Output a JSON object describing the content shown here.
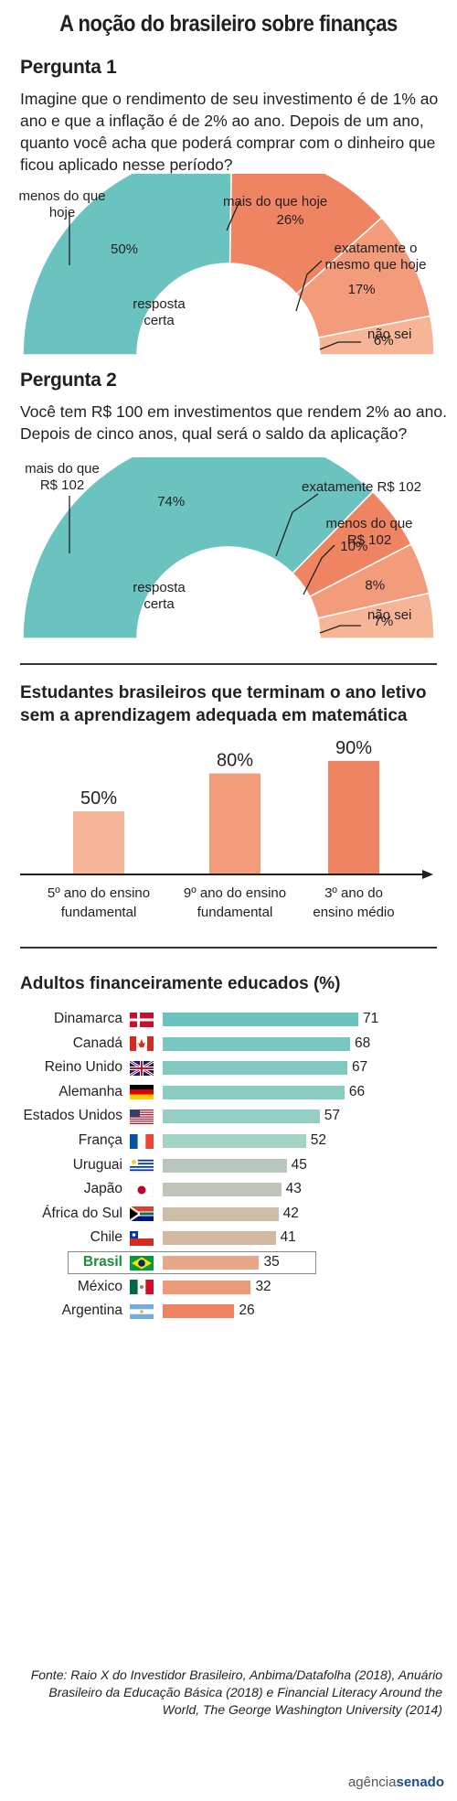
{
  "title": "A noção do brasileiro sobre finanças",
  "q1": {
    "heading": "Pergunta 1",
    "text": "Imagine que o rendimento de seu investimento é de 1% ao ano e que a inflação é de 2% ao ano. Depois de um ano, quanto você acha que poderá comprar com o dinheiro que ficou aplicado nesse período?",
    "slices": [
      {
        "label": "menos do que hoje",
        "value": 50,
        "text": "50%",
        "color": "#6ac3bf"
      },
      {
        "label": "mais do que hoje",
        "value": 26,
        "text": "26%",
        "color": "#ef8462"
      },
      {
        "label": "exatamente o mesmo que hoje",
        "value": 17,
        "text": "17%",
        "color": "#f39c7c"
      },
      {
        "label": "não sei",
        "value": 6,
        "text": "6%",
        "color": "#f7b597"
      }
    ],
    "center_label": "resposta certa"
  },
  "q2": {
    "heading": "Pergunta 2",
    "text": "Você tem R$ 100 em investimentos que rendem 2% ao ano. Depois de cinco anos, qual será o saldo da aplicação?",
    "slices": [
      {
        "label": "mais do que R$ 102",
        "value": 74,
        "text": "74%",
        "color": "#6ac3bf"
      },
      {
        "label": "exatamente R$ 102",
        "value": 10,
        "text": "10%",
        "color": "#ef8462"
      },
      {
        "label": "menos do que R$ 102",
        "value": 8,
        "text": "8%",
        "color": "#f39c7c"
      },
      {
        "label": "não sei",
        "value": 7,
        "text": "7%",
        "color": "#f7b597"
      }
    ],
    "center_label": "resposta certa"
  },
  "students": {
    "title": "Estudantes brasileiros que terminam o ano letivo sem a aprendizagem adequada em matemática",
    "bars": [
      {
        "category": "5º ano do ensino fundamental",
        "value": 50,
        "text": "50%",
        "color": "#f7b59a"
      },
      {
        "category": "9º ano do ensino fundamental",
        "value": 80,
        "text": "80%",
        "color": "#f39c7c"
      },
      {
        "category": "3º ano do ensino médio",
        "value": 90,
        "text": "90%",
        "color": "#ef8462"
      }
    ]
  },
  "adults": {
    "title": "Adultos financeiramente educados (%)",
    "countries": [
      {
        "name": "Dinamarca",
        "value": 71,
        "color": "#6ac3bf",
        "flag": "denmark-flag-icon"
      },
      {
        "name": "Canadá",
        "value": 68,
        "color": "#78c7c0",
        "flag": "canada-flag-icon"
      },
      {
        "name": "Reino Unido",
        "value": 67,
        "color": "#82cac1",
        "flag": "uk-flag-icon"
      },
      {
        "name": "Alemanha",
        "value": 66,
        "color": "#8acdc2",
        "flag": "germany-flag-icon"
      },
      {
        "name": "Estados Unidos",
        "value": 57,
        "color": "#95cfc3",
        "flag": "usa-flag-icon"
      },
      {
        "name": "França",
        "value": 52,
        "color": "#a3d2c6",
        "flag": "france-flag-icon"
      },
      {
        "name": "Uruguai",
        "value": 45,
        "color": "#b9c8bc",
        "flag": "uruguay-flag-icon"
      },
      {
        "name": "Japão",
        "value": 43,
        "color": "#bfc5b8",
        "flag": "japan-flag-icon"
      },
      {
        "name": "África do Sul",
        "value": 42,
        "color": "#cfbca6",
        "flag": "south-africa-flag-icon"
      },
      {
        "name": "Chile",
        "value": 41,
        "color": "#d2b9a0",
        "flag": "chile-flag-icon"
      },
      {
        "name": "Brasil",
        "value": 35,
        "color": "#e6a888",
        "flag": "brazil-flag-icon",
        "highlight": true
      },
      {
        "name": "México",
        "value": 32,
        "color": "#ec9a7a",
        "flag": "mexico-flag-icon"
      },
      {
        "name": "Argentina",
        "value": 26,
        "color": "#ef8462",
        "flag": "argentina-flag-icon"
      }
    ]
  },
  "source": "Fonte: Raio X do Investidor Brasileiro, Anbima/Datafolha (2018), Anuário Brasileiro da Educação Básica (2018) e Financial Literacy Around the World, The George Washington University (2014)",
  "logo": {
    "part1": "agência",
    "part2": "senado"
  },
  "chart_data": [
    {
      "type": "pie",
      "title": "Pergunta 1",
      "categories": [
        "menos do que hoje",
        "mais do que hoje",
        "exatamente o mesmo que hoje",
        "não sei"
      ],
      "values": [
        50,
        26,
        17,
        6
      ]
    },
    {
      "type": "pie",
      "title": "Pergunta 2",
      "categories": [
        "mais do que R$ 102",
        "exatamente R$ 102",
        "menos do que R$ 102",
        "não sei"
      ],
      "values": [
        74,
        10,
        8,
        7
      ]
    },
    {
      "type": "bar",
      "title": "Estudantes brasileiros que terminam o ano letivo sem a aprendizagem adequada em matemática",
      "categories": [
        "5º ano do ensino fundamental",
        "9º ano do ensino fundamental",
        "3º ano do ensino médio"
      ],
      "values": [
        50,
        80,
        90
      ],
      "ylim": [
        0,
        100
      ]
    },
    {
      "type": "bar",
      "title": "Adultos financeiramente educados (%)",
      "categories": [
        "Dinamarca",
        "Canadá",
        "Reino Unido",
        "Alemanha",
        "Estados Unidos",
        "França",
        "Uruguai",
        "Japão",
        "África do Sul",
        "Chile",
        "Brasil",
        "México",
        "Argentina"
      ],
      "values": [
        71,
        68,
        67,
        66,
        57,
        52,
        45,
        43,
        42,
        41,
        35,
        32,
        26
      ]
    }
  ]
}
